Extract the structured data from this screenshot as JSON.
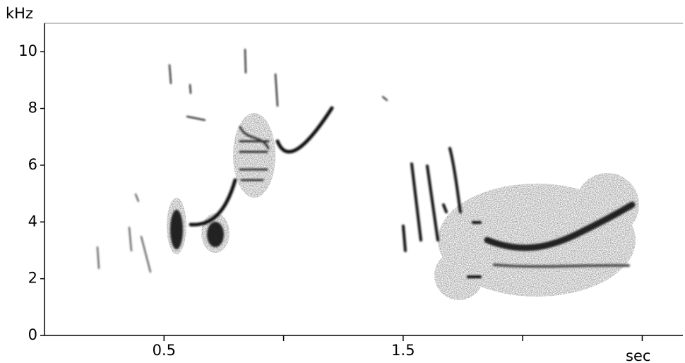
{
  "chart_data": {
    "type": "spectrogram",
    "y_label": "kHz",
    "x_label": "sec",
    "ylim": [
      0,
      11
    ],
    "yticks": [
      0,
      2,
      4,
      6,
      8,
      10
    ],
    "xlim": [
      0,
      2.67
    ],
    "xticks": [
      0.5,
      1.5
    ],
    "xminor_ticks": [
      1,
      2,
      2.5
    ]
  }
}
